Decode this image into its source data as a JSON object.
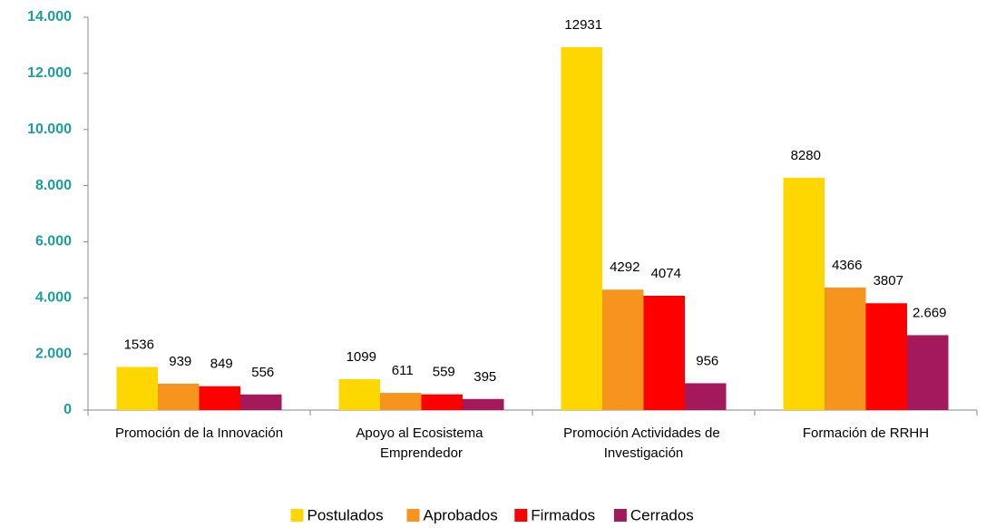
{
  "chart_data": {
    "type": "bar",
    "categories": [
      "Promoción de la Innovación",
      "Apoyo al Ecosistema Emprendedor",
      "Promoción Actividades de Investigación",
      "Formación de RRHH"
    ],
    "series": [
      {
        "name": "Postulados",
        "color": "#FFD700",
        "values": [
          1536,
          1099,
          12931,
          8280
        ]
      },
      {
        "name": "Aprobados",
        "color": "#F7941D",
        "values": [
          939,
          611,
          4292,
          4366
        ]
      },
      {
        "name": "Firmados",
        "color": "#FF0000",
        "values": [
          849,
          559,
          4074,
          3807
        ]
      },
      {
        "name": "Cerrados",
        "color": "#A3195B",
        "values": [
          556,
          395,
          956,
          2669
        ],
        "value_labels": [
          "556",
          "395",
          "956",
          "2.669"
        ]
      }
    ],
    "ylim": [
      0,
      14000
    ],
    "yticks": [
      0,
      {
        "value": 2000,
        "label": "2.000"
      },
      {
        "value": 4000,
        "label": "4.000"
      },
      {
        "value": 6000,
        "label": "6.000"
      },
      {
        "value": 8000,
        "label": "8.000"
      },
      {
        "value": 10000,
        "label": "10.000"
      },
      {
        "value": 12000,
        "label": "12.000"
      },
      {
        "value": 14000,
        "label": "14.000"
      }
    ],
    "grid": false,
    "legend": "bottom"
  }
}
